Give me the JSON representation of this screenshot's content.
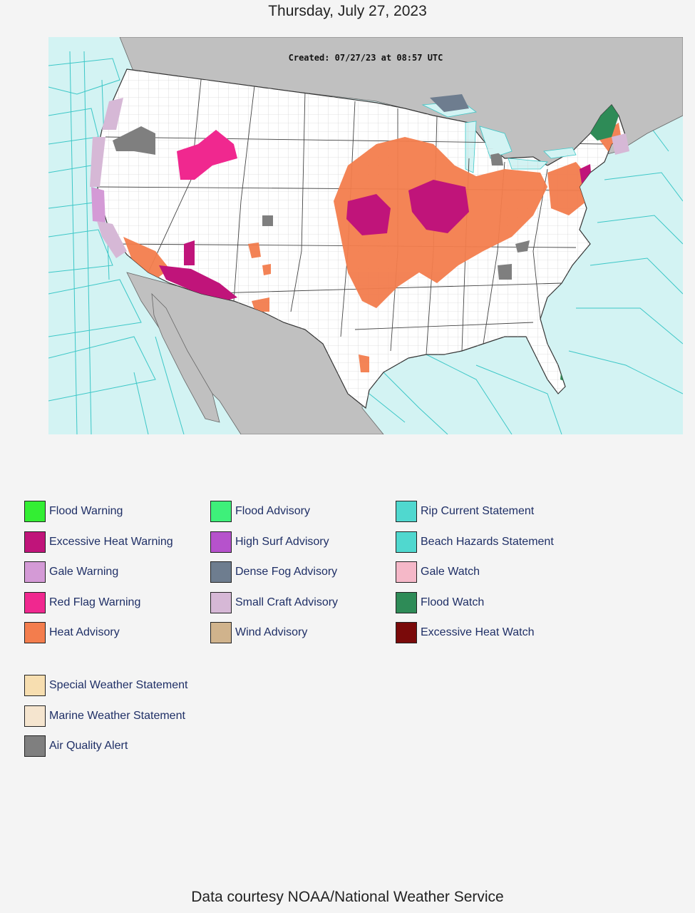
{
  "page": {
    "date": "Thursday, July 27, 2023",
    "footer": "Data courtesy NOAA/National Weather Service"
  },
  "map": {
    "created_stamp": "Created: 07/27/23 at 08:57 UTC",
    "colors": {
      "ocean": "#d3f3f3",
      "land_foreign": "#c0c0c0",
      "land_us": "#ffffff",
      "marine_zone_line": "#3cc7c7"
    }
  },
  "legend": {
    "columns": [
      [
        {
          "label": "Flood Warning",
          "color": "#33ee33"
        },
        {
          "label": "Excessive Heat Warning",
          "color": "#c0147a"
        },
        {
          "label": "Gale Warning",
          "color": "#d49ad6"
        },
        {
          "label": "Red Flag Warning",
          "color": "#f0288f"
        },
        {
          "label": "Heat Advisory",
          "color": "#f37d4d"
        }
      ],
      [
        {
          "label": "Flood Advisory",
          "color": "#3ef07a"
        },
        {
          "label": "High Surf Advisory",
          "color": "#b652cc"
        },
        {
          "label": "Dense Fog Advisory",
          "color": "#6e7d8f"
        },
        {
          "label": "Small Craft Advisory",
          "color": "#d6b8d6"
        },
        {
          "label": "Wind Advisory",
          "color": "#d0b38c"
        }
      ],
      [
        {
          "label": "Rip Current Statement",
          "color": "#50d8cf"
        },
        {
          "label": "Beach Hazards Statement",
          "color": "#50d8cf"
        },
        {
          "label": "Gale Watch",
          "color": "#f5b8c8"
        },
        {
          "label": "Flood Watch",
          "color": "#2e8b57"
        },
        {
          "label": "Excessive Heat Watch",
          "color": "#7a0a0a"
        }
      ]
    ],
    "extra": [
      {
        "label": "Special Weather Statement",
        "color": "#f7deb0"
      },
      {
        "label": "Marine Weather Statement",
        "color": "#f5e5cf"
      },
      {
        "label": "Air Quality Alert",
        "color": "#7f7f7f"
      }
    ]
  }
}
